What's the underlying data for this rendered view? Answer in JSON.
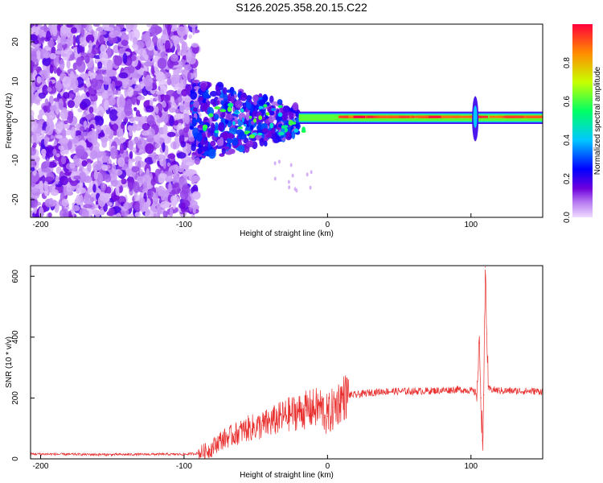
{
  "title": "S126.2025.358.20.15.C22",
  "chart_data": [
    {
      "type": "heatmap",
      "title": "S126.2025.358.20.15.C22",
      "xlabel": "Height of straight line (km)",
      "ylabel": "Frequency (Hz)",
      "xlim": [
        -207,
        150
      ],
      "ylim": [
        -24.5,
        24.5
      ],
      "xticks": [
        -200,
        -100,
        0,
        100
      ],
      "yticks": [
        -20,
        -10,
        0,
        10,
        20
      ],
      "colorbar": {
        "label": "Normalized spectral amplitude",
        "range": [
          0,
          1
        ],
        "ticks": [
          "0.0",
          "0.2",
          "0.4",
          "0.6",
          "0.8"
        ],
        "tick_values": [
          0.0,
          0.2,
          0.4,
          0.6,
          0.8
        ],
        "colors": [
          "#ffffff",
          "#6a00e6",
          "#0000ff",
          "#00ccff",
          "#00ff66",
          "#ccff00",
          "#ff8800",
          "#ff0033"
        ]
      },
      "features": {
        "noise_region_km": [
          -207,
          -95
        ],
        "signal_band_hz": [
          0,
          1.5
        ],
        "strong_band_km": [
          -20,
          150
        ],
        "spike_km": 103
      }
    },
    {
      "type": "line",
      "xlabel": "Height of straight line (km)",
      "ylabel": "SNR (10 * v/v)",
      "xlim": [
        -207,
        150
      ],
      "ylim": [
        0,
        635
      ],
      "xticks": [
        -200,
        -100,
        0,
        100
      ],
      "yticks": [
        0,
        200,
        400,
        600
      ],
      "series": [
        {
          "name": "SNR",
          "color": "#e8302f",
          "x": [
            -207,
            -180,
            -150,
            -120,
            -100,
            -90,
            -82,
            -75,
            -65,
            -55,
            -45,
            -35,
            -25,
            -15,
            -5,
            0,
            5,
            10,
            15,
            20,
            30,
            40,
            60,
            80,
            90,
            100,
            104,
            106,
            107,
            108,
            109,
            110,
            112,
            120,
            150
          ],
          "y": [
            16,
            15,
            14,
            15,
            15,
            18,
            30,
            60,
            80,
            100,
            110,
            130,
            150,
            160,
            170,
            140,
            170,
            200,
            210,
            210,
            218,
            222,
            222,
            225,
            228,
            225,
            215,
            380,
            200,
            60,
            210,
            630,
            230,
            224,
            222
          ]
        }
      ]
    }
  ]
}
